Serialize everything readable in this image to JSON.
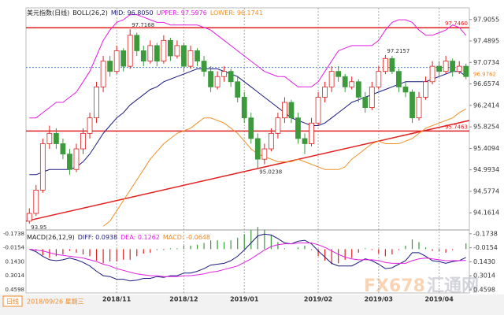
{
  "chart_data": [
    {
      "type": "candlestick",
      "title": "美元指数(日线)",
      "indicator": "BOLL(26,2)",
      "up_color": "#e02020",
      "down_color": "#3c9a3c",
      "categories": [
        null,
        null,
        null,
        null,
        null,
        null,
        null,
        null,
        null,
        null,
        null,
        null,
        null,
        "2018/11",
        null,
        null,
        null,
        null,
        null,
        null,
        null,
        null,
        null,
        "2018/12",
        null,
        null,
        null,
        null,
        null,
        null,
        null,
        null,
        "2019/01",
        null,
        null,
        null,
        null,
        null,
        null,
        null,
        null,
        null,
        null,
        "2019/02",
        null,
        null,
        null,
        null,
        null,
        null,
        null,
        null,
        "2019/03",
        null,
        null,
        null,
        null,
        null,
        null,
        null,
        null,
        "2019/04",
        null,
        null,
        null,
        null
      ],
      "ohlc": [
        [
          94.0,
          94.25,
          93.95,
          94.15
        ],
        [
          94.15,
          94.7,
          94.1,
          94.6
        ],
        [
          94.6,
          95.6,
          94.55,
          95.5
        ],
        [
          95.5,
          95.85,
          95.4,
          95.7
        ],
        [
          95.7,
          95.8,
          95.4,
          95.5
        ],
        [
          95.5,
          95.6,
          95.2,
          95.3
        ],
        [
          95.3,
          95.4,
          94.9,
          95.0
        ],
        [
          95.0,
          95.5,
          94.95,
          95.4
        ],
        [
          95.4,
          95.8,
          95.3,
          95.7
        ],
        [
          95.7,
          96.1,
          95.6,
          96.0
        ],
        [
          96.0,
          96.7,
          95.9,
          96.6
        ],
        [
          96.6,
          97.2,
          96.5,
          97.1
        ],
        [
          97.1,
          97.2,
          96.8,
          96.9
        ],
        [
          96.9,
          97.4,
          96.85,
          97.3
        ],
        [
          97.3,
          97.35,
          96.9,
          97.0
        ],
        [
          97.0,
          97.7168,
          96.95,
          97.6
        ],
        [
          97.6,
          97.65,
          97.2,
          97.3
        ],
        [
          97.3,
          97.4,
          97.0,
          97.1
        ],
        [
          97.1,
          97.5,
          97.05,
          97.4
        ],
        [
          97.4,
          97.45,
          97.0,
          97.1
        ],
        [
          97.1,
          97.6,
          97.05,
          97.5
        ],
        [
          97.5,
          97.55,
          97.1,
          97.2
        ],
        [
          97.2,
          97.5,
          97.15,
          97.4
        ],
        [
          97.4,
          97.45,
          96.9,
          97.0
        ],
        [
          97.0,
          97.4,
          96.95,
          97.3
        ],
        [
          97.3,
          97.35,
          97.0,
          97.1
        ],
        [
          97.1,
          97.2,
          96.8,
          96.9
        ],
        [
          96.9,
          97.0,
          96.5,
          96.6
        ],
        [
          96.6,
          96.9,
          96.55,
          96.8
        ],
        [
          96.8,
          97.0,
          96.7,
          96.9
        ],
        [
          96.9,
          96.95,
          96.6,
          96.7
        ],
        [
          96.7,
          96.8,
          96.3,
          96.4
        ],
        [
          96.4,
          96.5,
          95.9,
          96.0
        ],
        [
          96.0,
          96.1,
          95.5,
          95.6
        ],
        [
          95.6,
          95.7,
          95.0238,
          95.2
        ],
        [
          95.2,
          95.5,
          95.1,
          95.4
        ],
        [
          95.4,
          95.8,
          95.35,
          95.7
        ],
        [
          95.7,
          96.1,
          95.6,
          96.0
        ],
        [
          96.0,
          96.4,
          95.9,
          96.3
        ],
        [
          96.3,
          96.35,
          95.9,
          96.0
        ],
        [
          96.0,
          96.1,
          95.5,
          95.6
        ],
        [
          95.6,
          95.7,
          95.3,
          95.5
        ],
        [
          95.5,
          96.0,
          95.45,
          95.9
        ],
        [
          95.9,
          96.5,
          95.85,
          96.4
        ],
        [
          96.4,
          96.7,
          96.3,
          96.6
        ],
        [
          96.6,
          97.0,
          96.5,
          96.9
        ],
        [
          96.9,
          97.0,
          96.7,
          96.8
        ],
        [
          96.8,
          96.85,
          96.5,
          96.6
        ],
        [
          96.6,
          96.8,
          96.55,
          96.7
        ],
        [
          96.7,
          96.75,
          96.3,
          96.4
        ],
        [
          96.4,
          96.5,
          96.1,
          96.2
        ],
        [
          96.2,
          96.7,
          96.15,
          96.6
        ],
        [
          96.6,
          97.0,
          96.55,
          96.9
        ],
        [
          96.9,
          97.2157,
          96.85,
          97.15
        ],
        [
          97.15,
          97.2,
          96.85,
          96.9
        ],
        [
          96.9,
          96.95,
          96.5,
          96.6
        ],
        [
          96.6,
          96.7,
          96.4,
          96.5
        ],
        [
          96.5,
          96.55,
          95.9,
          96.0
        ],
        [
          96.0,
          96.5,
          95.95,
          96.4
        ],
        [
          96.4,
          96.8,
          96.35,
          96.7
        ],
        [
          96.7,
          97.1,
          96.65,
          97.0
        ],
        [
          97.0,
          97.1,
          96.8,
          96.9
        ],
        [
          96.9,
          97.2,
          96.85,
          97.1
        ],
        [
          97.1,
          97.15,
          96.8,
          96.9
        ],
        [
          96.9,
          97.1,
          96.85,
          97.0
        ],
        [
          97.0,
          97.05,
          96.75,
          96.8
        ]
      ],
      "series": [
        {
          "name": "MID: 96.8050",
          "color": "#1a1a80",
          "values": [
            94.9,
            94.9,
            94.95,
            95.0,
            95.0,
            95.0,
            95.0,
            95.05,
            95.15,
            95.3,
            95.5,
            95.7,
            95.85,
            96.0,
            96.1,
            96.25,
            96.35,
            96.45,
            96.55,
            96.6,
            96.7,
            96.75,
            96.8,
            96.85,
            96.9,
            96.95,
            96.95,
            96.95,
            96.95,
            96.9,
            96.85,
            96.8,
            96.7,
            96.6,
            96.5,
            96.4,
            96.3,
            96.2,
            96.1,
            96.0,
            95.95,
            95.9,
            95.85,
            95.85,
            95.9,
            96.0,
            96.1,
            96.2,
            96.3,
            96.35,
            96.4,
            96.45,
            96.5,
            96.55,
            96.6,
            96.65,
            96.7,
            96.7,
            96.7,
            96.7,
            96.75,
            96.8,
            96.85,
            96.9,
            96.9,
            96.805
          ]
        },
        {
          "name": "UPPER: 97.5976",
          "color": "#e020e0",
          "values": [
            96.0,
            96.0,
            96.1,
            96.2,
            96.3,
            96.3,
            96.4,
            96.5,
            96.7,
            96.9,
            97.2,
            97.5,
            97.7,
            97.85,
            97.9,
            98.0,
            98.0,
            97.95,
            97.9,
            97.85,
            97.85,
            97.8,
            97.8,
            97.8,
            97.8,
            97.8,
            97.75,
            97.7,
            97.6,
            97.5,
            97.4,
            97.3,
            97.2,
            97.1,
            97.0,
            96.9,
            96.85,
            96.8,
            96.8,
            96.7,
            96.6,
            96.6,
            96.6,
            96.7,
            96.9,
            97.1,
            97.3,
            97.35,
            97.4,
            97.4,
            97.4,
            97.4,
            97.5,
            97.7,
            97.85,
            97.9,
            97.9,
            97.85,
            97.7,
            97.6,
            97.6,
            97.65,
            97.7,
            97.8,
            97.75,
            97.5976
          ]
        },
        {
          "name": "LOWER: 96.1741",
          "color": "#f0902a",
          "values": [
            null,
            null,
            null,
            null,
            null,
            null,
            null,
            null,
            null,
            null,
            null,
            93.9,
            94.0,
            94.2,
            94.4,
            94.6,
            94.8,
            95.0,
            95.2,
            95.35,
            95.5,
            95.6,
            95.7,
            95.75,
            95.8,
            95.9,
            96.0,
            96.0,
            95.95,
            95.9,
            95.8,
            95.7,
            95.55,
            95.4,
            95.3,
            95.25,
            95.2,
            95.15,
            95.15,
            95.15,
            95.2,
            95.15,
            95.1,
            95.05,
            95.0,
            95.0,
            95.0,
            95.05,
            95.2,
            95.3,
            95.4,
            95.5,
            95.55,
            95.5,
            95.5,
            95.5,
            95.55,
            95.6,
            95.7,
            95.8,
            95.85,
            95.9,
            95.95,
            96.0,
            96.1,
            96.1741
          ]
        }
      ],
      "ylim": [
        93.86,
        98.1
      ],
      "yticks": [
        97.9055,
        97.4895,
        97.0734,
        96.6574,
        96.2414,
        95.8254,
        95.4094,
        94.9934,
        94.5774,
        94.1614
      ],
      "levels": [
        {
          "value": 97.746,
          "label": "97.7460"
        },
        95.7463
      ],
      "level_color": "#e02020",
      "trendline": {
        "start": 94.0,
        "end": 95.95
      },
      "last_price": 96.9762
    },
    {
      "type": "macd",
      "title": "MACD(26,12,9)",
      "series": [
        {
          "name": "DIFF: 0.0938",
          "color": "#1a1a80",
          "values": [
            0.0,
            0.03,
            0.08,
            0.12,
            0.13,
            0.12,
            0.1,
            0.12,
            0.15,
            0.19,
            0.25,
            0.3,
            0.31,
            0.34,
            0.34,
            0.36,
            0.35,
            0.33,
            0.33,
            0.31,
            0.32,
            0.3,
            0.3,
            0.27,
            0.27,
            0.25,
            0.22,
            0.18,
            0.17,
            0.16,
            0.13,
            0.08,
            0.01,
            -0.07,
            -0.15,
            -0.17,
            -0.16,
            -0.12,
            -0.07,
            -0.06,
            -0.09,
            -0.1,
            -0.06,
            0.02,
            0.09,
            0.16,
            0.19,
            0.19,
            0.19,
            0.15,
            0.11,
            0.13,
            0.17,
            0.22,
            0.21,
            0.17,
            0.13,
            0.04,
            0.04,
            0.08,
            0.13,
            0.14,
            0.16,
            0.14,
            0.13,
            0.0938
          ]
        },
        {
          "name": "DEA: 0.1262",
          "color": "#e020e0",
          "values": [
            0.0,
            0.01,
            0.02,
            0.04,
            0.06,
            0.07,
            0.08,
            0.09,
            0.1,
            0.12,
            0.14,
            0.17,
            0.19,
            0.22,
            0.24,
            0.26,
            0.28,
            0.29,
            0.3,
            0.3,
            0.31,
            0.31,
            0.31,
            0.3,
            0.3,
            0.29,
            0.28,
            0.26,
            0.25,
            0.23,
            0.21,
            0.19,
            0.15,
            0.11,
            0.06,
            0.01,
            -0.03,
            -0.05,
            -0.06,
            -0.06,
            -0.07,
            -0.07,
            -0.07,
            -0.05,
            -0.02,
            0.02,
            0.06,
            0.09,
            0.11,
            0.12,
            0.12,
            0.12,
            0.13,
            0.15,
            0.16,
            0.16,
            0.16,
            0.13,
            0.11,
            0.1,
            0.11,
            0.12,
            0.13,
            0.13,
            0.13,
            0.1262
          ]
        },
        {
          "name": "MACD: -0.0648",
          "type": "bar",
          "color": "#f08a2a",
          "up_color": "#e02020",
          "down_color": "#3c9a3c",
          "values": [
            0,
            0.02,
            0.07,
            0.1,
            0.08,
            0.06,
            0.02,
            0.04,
            0.06,
            0.08,
            0.13,
            0.16,
            0.14,
            0.14,
            0.12,
            0.12,
            0.08,
            0.05,
            0.04,
            0.01,
            0.01,
            -0.01,
            -0.01,
            -0.04,
            -0.04,
            -0.05,
            -0.07,
            -0.1,
            -0.1,
            -0.08,
            -0.1,
            -0.13,
            -0.17,
            -0.22,
            -0.25,
            -0.22,
            -0.16,
            -0.08,
            -0.01,
            0,
            -0.02,
            -0.04,
            0.01,
            0.08,
            0.13,
            0.17,
            0.16,
            0.12,
            0.1,
            0.04,
            -0.01,
            0.01,
            0.05,
            0.08,
            0.06,
            0.01,
            -0.04,
            -0.11,
            -0.08,
            -0.02,
            0.02,
            0.02,
            0.04,
            0.01,
            0,
            -0.0648
          ]
        }
      ],
      "ylim": [
        0.495,
        -0.297
      ],
      "yticks": [
        0.4598,
        0.3014,
        {
          "value": 0.143,
          "label": "0.1430"
        },
        -0.0154,
        -0.1738
      ]
    }
  ],
  "watermark": "FX678",
  "watermark_cn": "汇通网",
  "status_bar": {
    "period": "日线",
    "date": "2018/09/26 星期三"
  }
}
